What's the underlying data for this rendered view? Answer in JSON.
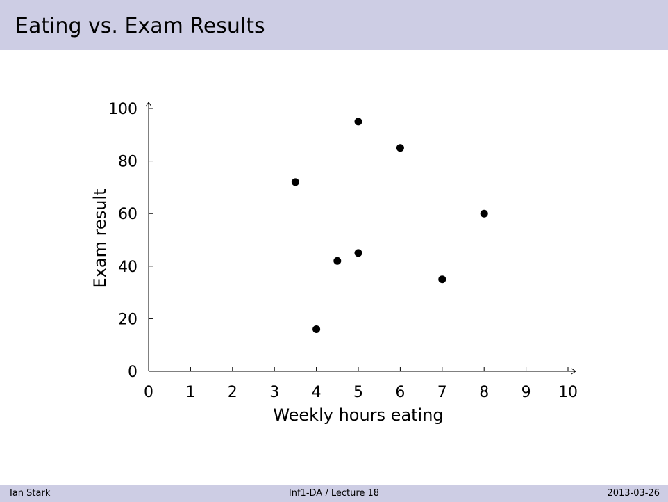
{
  "slide": {
    "title": "Eating vs. Exam Results"
  },
  "footer": {
    "author": "Ian Stark",
    "course": "Inf1-DA / Lecture 18",
    "date": "2013-03-26"
  },
  "chart_data": {
    "type": "scatter",
    "title": "",
    "xlabel": "Weekly hours eating",
    "ylabel": "Exam result",
    "xlim": [
      0,
      10
    ],
    "ylim": [
      0,
      100
    ],
    "xticks": [
      0,
      1,
      2,
      3,
      4,
      5,
      6,
      7,
      8,
      9,
      10
    ],
    "yticks": [
      0,
      20,
      40,
      60,
      80,
      100
    ],
    "grid": false,
    "series": [
      {
        "points": [
          {
            "x": 3.5,
            "y": 72
          },
          {
            "x": 4,
            "y": 16
          },
          {
            "x": 4.5,
            "y": 42
          },
          {
            "x": 5,
            "y": 95
          },
          {
            "x": 5,
            "y": 45
          },
          {
            "x": 6,
            "y": 85
          },
          {
            "x": 7,
            "y": 35
          },
          {
            "x": 8,
            "y": 60
          }
        ]
      }
    ],
    "marker_color": "#000000"
  },
  "colors": {
    "title_bar": "#cdcde4",
    "footer_bar": "#cdcde4"
  }
}
